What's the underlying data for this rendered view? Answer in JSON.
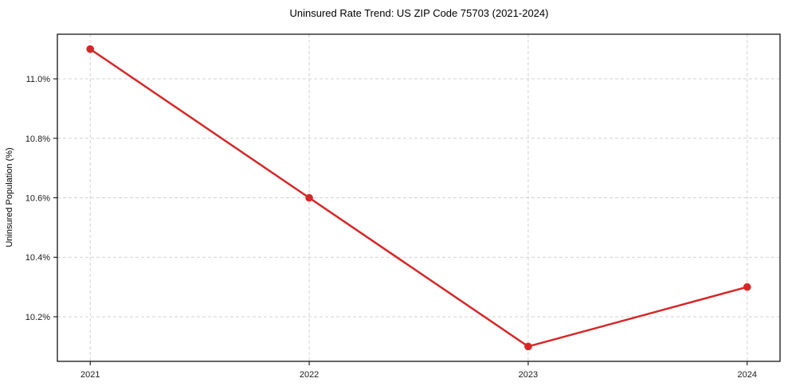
{
  "chart_data": {
    "type": "line",
    "title": "Uninsured Rate Trend: US ZIP Code 75703 (2021-2024)",
    "xlabel": "",
    "ylabel": "Uninsured Population (%)",
    "x": [
      2021,
      2022,
      2023,
      2024
    ],
    "x_tick_labels": [
      "2021",
      "2022",
      "2023",
      "2024"
    ],
    "series": [
      {
        "name": "Uninsured rate",
        "values": [
          11.1,
          10.6,
          10.1,
          10.3
        ],
        "color": "#d62728",
        "marker": "circle",
        "marker_radius": 4.8
      }
    ],
    "y_ticks": [
      10.2,
      10.4,
      10.6,
      10.8,
      11.0
    ],
    "y_tick_labels": [
      "10.2%",
      "10.4%",
      "10.6%",
      "10.8%",
      "11.0%"
    ],
    "xlim": [
      2020.85,
      2024.15
    ],
    "ylim": [
      10.05,
      11.15
    ],
    "grid": true,
    "grid_style": "dashed",
    "grid_color": "#cccccc",
    "axis_color": "#000000",
    "tick_label_color": "#1a1a1a",
    "background_color": "#ffffff",
    "legend": "none"
  }
}
